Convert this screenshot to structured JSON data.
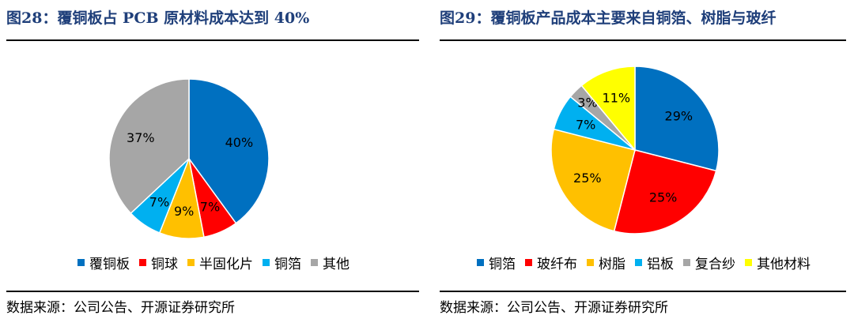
{
  "charts": [
    {
      "title": "图28：覆铜板占 PCB 原材料成本达到 40%",
      "source": "数据来源：公司公告、开源证券研究所"
    },
    {
      "title": "图29：覆铜板产品成本主要来自铜箔、树脂与玻纤",
      "source": "数据来源：公司公告、开源证券研究所"
    }
  ],
  "chart_data": [
    {
      "type": "pie",
      "title": "图28：覆铜板占 PCB 原材料成本达到 40%",
      "categories": [
        "覆铜板",
        "铜球",
        "半固化片",
        "铜箔",
        "其他"
      ],
      "values": [
        40,
        7,
        9,
        7,
        37
      ],
      "labels": [
        "40%",
        "7%",
        "9%",
        "7%",
        "37%"
      ],
      "colors": [
        "#0070C0",
        "#FF0000",
        "#FFC000",
        "#00B0F0",
        "#A6A6A6"
      ],
      "start_angle": "12 o'clock, clockwise",
      "legend": "bottom"
    },
    {
      "type": "pie",
      "title": "图29：覆铜板产品成本主要来自铜箔、树脂与玻纤",
      "categories": [
        "铜箔",
        "玻纤布",
        "树脂",
        "铝板",
        "复合纱",
        "其他材料"
      ],
      "values": [
        29,
        25,
        25,
        7,
        3,
        11
      ],
      "labels": [
        "29%",
        "25%",
        "25%",
        "7%",
        "3%",
        "11%"
      ],
      "colors": [
        "#0070C0",
        "#FF0000",
        "#FFC000",
        "#00B0F0",
        "#A6A6A6",
        "#FFFF00"
      ],
      "start_angle": "12 o'clock, clockwise",
      "legend": "bottom"
    }
  ]
}
